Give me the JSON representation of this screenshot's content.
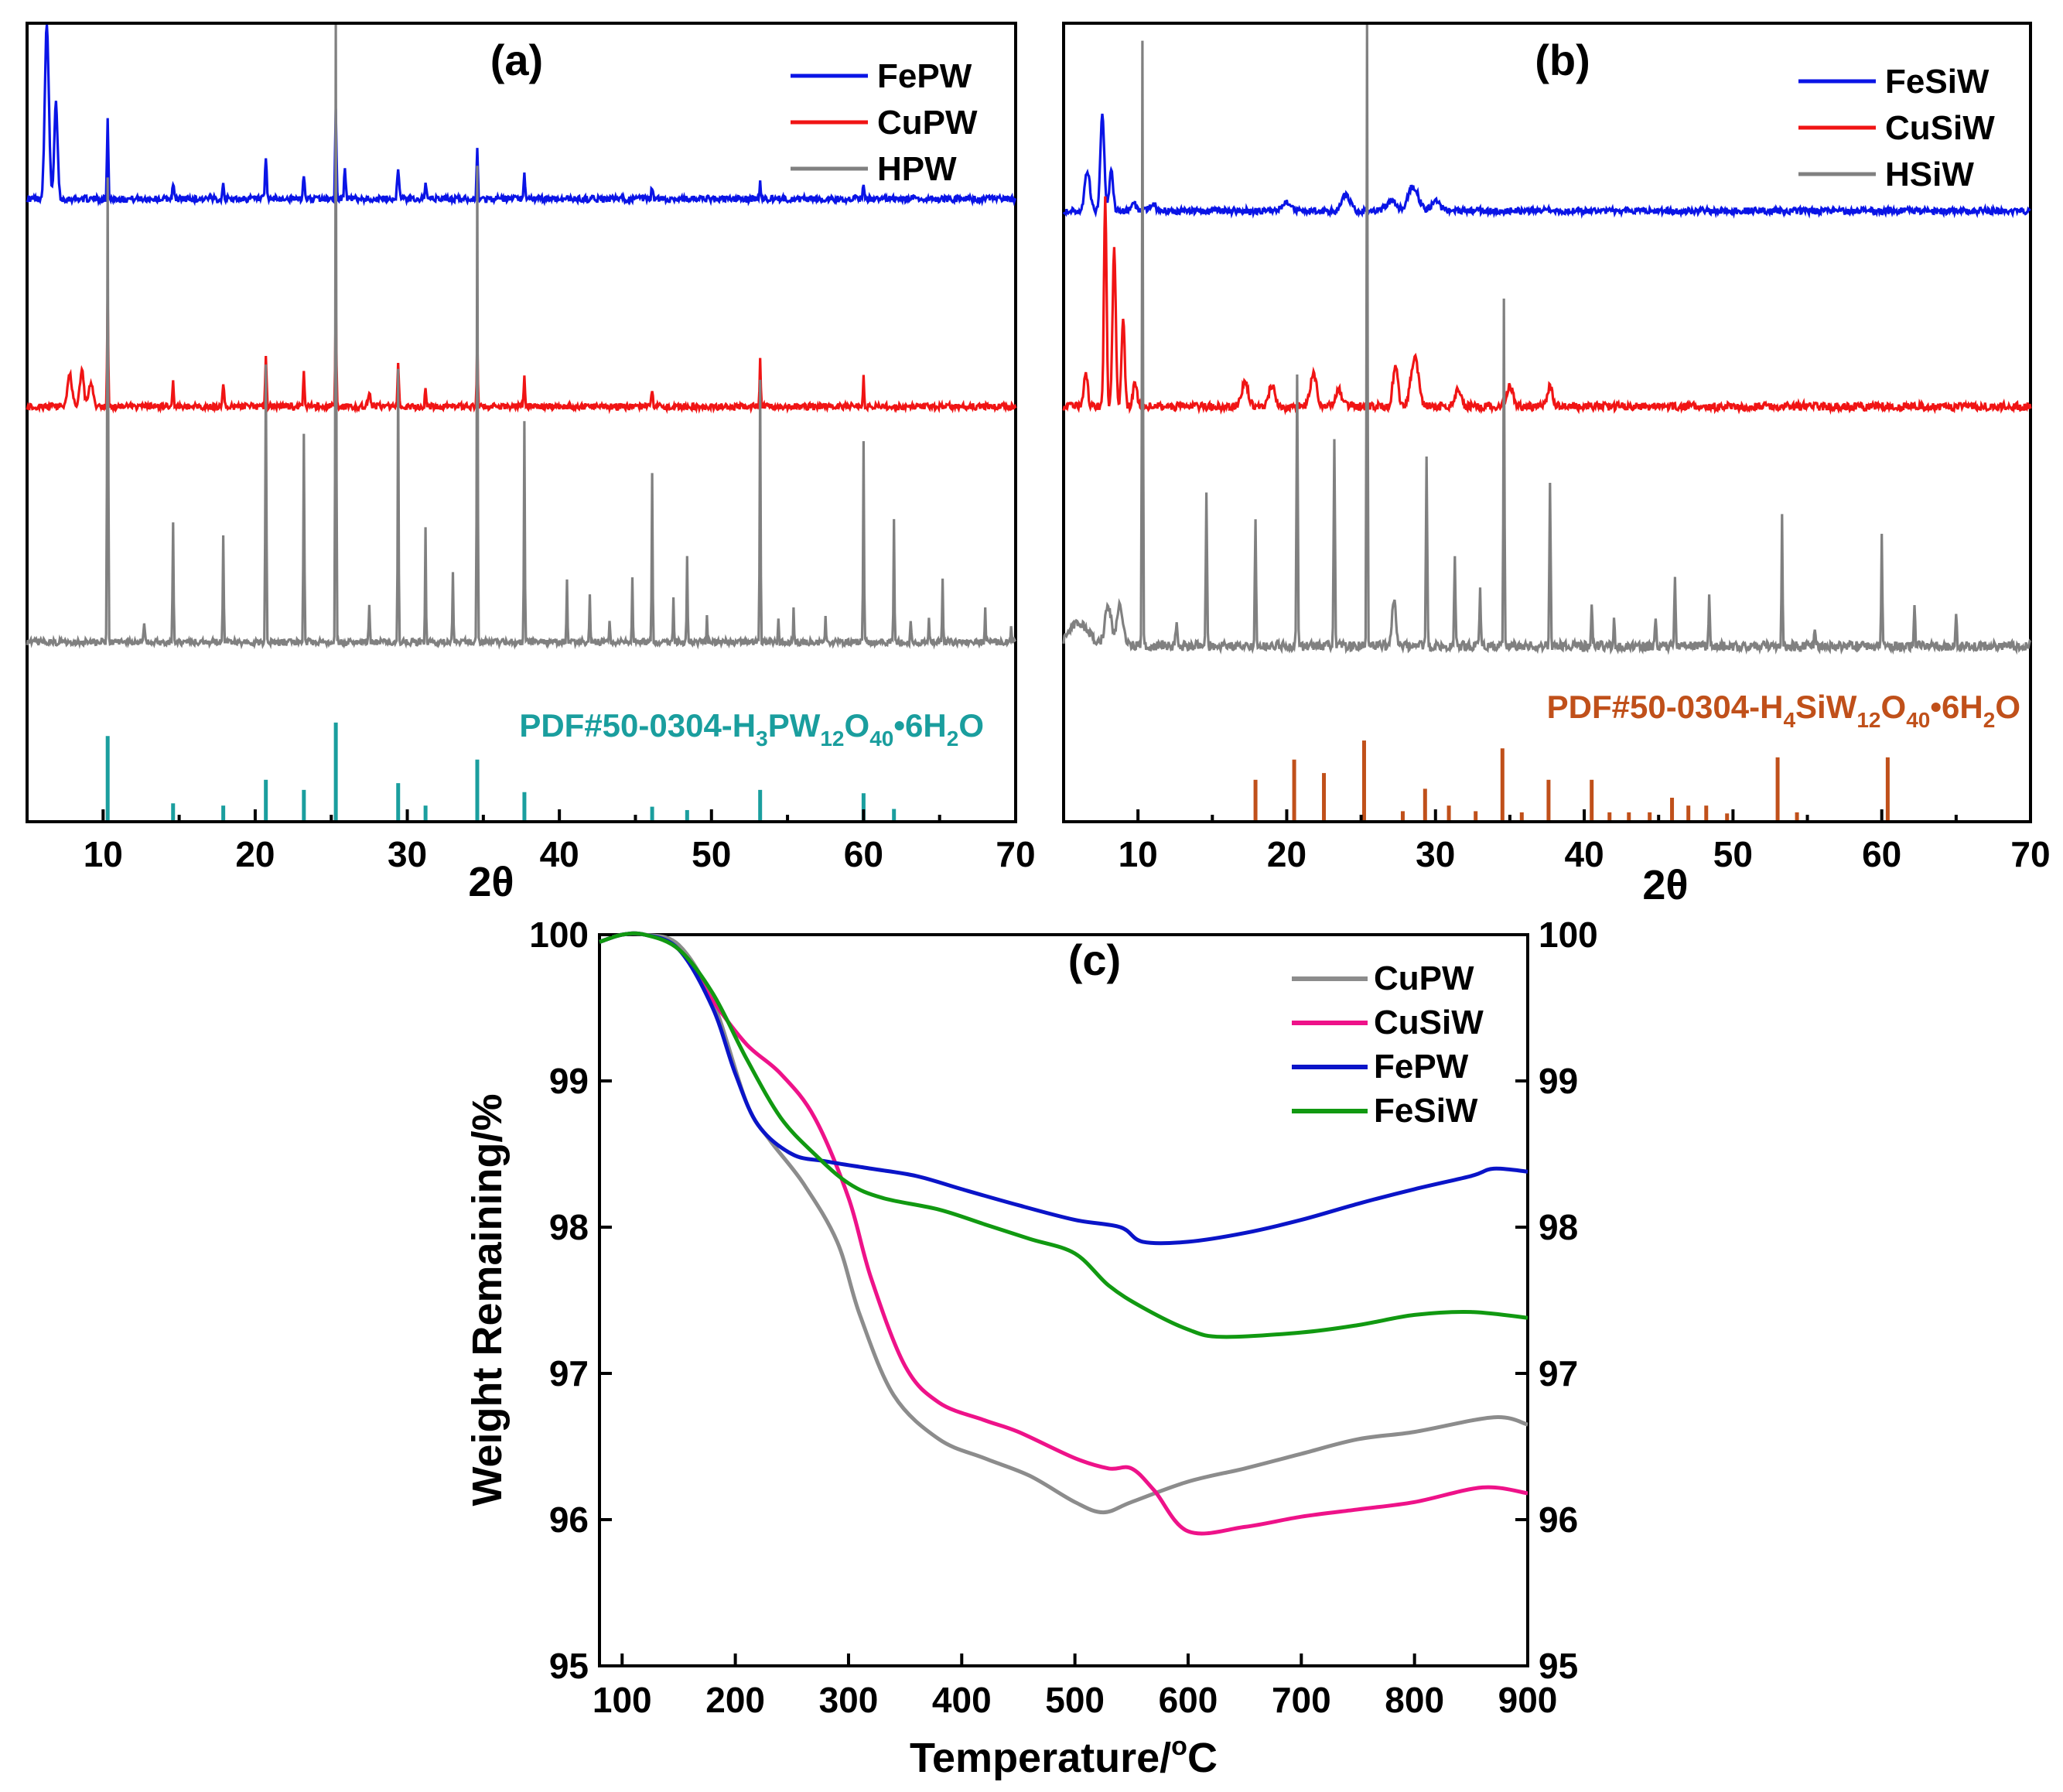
{
  "chart_data": [
    {
      "panel": "(a)",
      "type": "line",
      "xlabel": "2θ",
      "xlim": [
        5,
        70
      ],
      "xticks": [
        10,
        20,
        30,
        40,
        50,
        60,
        70
      ],
      "series": [
        {
          "name": "FePW",
          "color": "#0a14e6",
          "baseline": 0.78,
          "noise": 0.004,
          "peaks": [
            [
              6.3,
              0.22,
              0.3
            ],
            [
              6.9,
              0.12,
              0.25
            ],
            [
              10.3,
              0.1,
              0.1
            ],
            [
              14.6,
              0.02,
              0.12
            ],
            [
              17.9,
              0.02,
              0.12
            ],
            [
              20.7,
              0.05,
              0.12
            ],
            [
              23.2,
              0.03,
              0.12
            ],
            [
              25.3,
              0.11,
              0.1
            ],
            [
              25.9,
              0.04,
              0.12
            ],
            [
              29.4,
              0.04,
              0.15
            ],
            [
              31.2,
              0.02,
              0.12
            ],
            [
              34.6,
              0.06,
              0.1
            ],
            [
              37.7,
              0.03,
              0.1
            ],
            [
              46.1,
              0.015,
              0.12
            ],
            [
              53.2,
              0.02,
              0.1
            ],
            [
              60.0,
              0.02,
              0.1
            ]
          ]
        },
        {
          "name": "CuPW",
          "color": "#f01414",
          "baseline": 0.52,
          "noise": 0.004,
          "peaks": [
            [
              7.8,
              0.04,
              0.35
            ],
            [
              8.6,
              0.045,
              0.3
            ],
            [
              9.2,
              0.03,
              0.3
            ],
            [
              10.3,
              0.14,
              0.08
            ],
            [
              14.6,
              0.03,
              0.1
            ],
            [
              17.9,
              0.03,
              0.12
            ],
            [
              20.7,
              0.06,
              0.1
            ],
            [
              23.2,
              0.045,
              0.1
            ],
            [
              25.3,
              0.14,
              0.08
            ],
            [
              27.5,
              0.015,
              0.2
            ],
            [
              29.4,
              0.055,
              0.1
            ],
            [
              31.2,
              0.025,
              0.1
            ],
            [
              34.6,
              0.09,
              0.08
            ],
            [
              37.7,
              0.035,
              0.1
            ],
            [
              46.1,
              0.02,
              0.12
            ],
            [
              53.2,
              0.06,
              0.08
            ],
            [
              60.0,
              0.04,
              0.08
            ]
          ]
        },
        {
          "name": "HPW",
          "color": "#808080",
          "baseline": 0.225,
          "noise": 0.004,
          "peaks": [
            [
              10.3,
              0.58,
              0.08
            ],
            [
              12.7,
              0.02,
              0.1
            ],
            [
              14.6,
              0.15,
              0.08
            ],
            [
              17.9,
              0.13,
              0.08
            ],
            [
              20.7,
              0.35,
              0.08
            ],
            [
              23.2,
              0.26,
              0.08
            ],
            [
              25.3,
              0.81,
              0.07
            ],
            [
              27.5,
              0.05,
              0.08
            ],
            [
              29.4,
              0.34,
              0.07
            ],
            [
              31.2,
              0.14,
              0.07
            ],
            [
              33.0,
              0.09,
              0.07
            ],
            [
              34.6,
              0.6,
              0.07
            ],
            [
              37.7,
              0.28,
              0.07
            ],
            [
              40.5,
              0.08,
              0.07
            ],
            [
              42.0,
              0.06,
              0.07
            ],
            [
              43.3,
              0.03,
              0.07
            ],
            [
              44.8,
              0.08,
              0.07
            ],
            [
              46.1,
              0.21,
              0.07
            ],
            [
              47.5,
              0.06,
              0.07
            ],
            [
              48.4,
              0.11,
              0.07
            ],
            [
              49.7,
              0.03,
              0.07
            ],
            [
              53.2,
              0.33,
              0.07
            ],
            [
              54.4,
              0.03,
              0.07
            ],
            [
              55.4,
              0.04,
              0.07
            ],
            [
              57.5,
              0.03,
              0.07
            ],
            [
              60.0,
              0.25,
              0.07
            ],
            [
              62.0,
              0.15,
              0.07
            ],
            [
              63.1,
              0.03,
              0.07
            ],
            [
              64.3,
              0.03,
              0.07
            ],
            [
              65.2,
              0.08,
              0.07
            ],
            [
              68.0,
              0.04,
              0.07
            ],
            [
              69.7,
              0.02,
              0.07
            ]
          ]
        }
      ],
      "reference": {
        "label": "PDF#50-0304-H",
        "sub1": "3",
        "mid1": "PW",
        "sub2": "12",
        "mid2": "O",
        "sub3": "40",
        "tail": "•6H",
        "sub4": "2",
        "end": "O",
        "color": "#1a9e9e",
        "sticks": [
          [
            10.3,
            0.75
          ],
          [
            14.6,
            0.15
          ],
          [
            17.9,
            0.13
          ],
          [
            20.7,
            0.36
          ],
          [
            23.2,
            0.27
          ],
          [
            25.3,
            0.87
          ],
          [
            29.4,
            0.33
          ],
          [
            31.2,
            0.13
          ],
          [
            34.6,
            0.54
          ],
          [
            37.7,
            0.25
          ],
          [
            46.1,
            0.12
          ],
          [
            48.4,
            0.09
          ],
          [
            53.2,
            0.27
          ],
          [
            60.0,
            0.24
          ],
          [
            62.0,
            0.1
          ]
        ]
      }
    },
    {
      "panel": "(b)",
      "type": "line",
      "xlabel": "2θ",
      "xlim": [
        5,
        70
      ],
      "xticks": [
        10,
        20,
        30,
        40,
        50,
        60,
        70
      ],
      "series": [
        {
          "name": "FeSiW",
          "color": "#0a14e6",
          "baseline": 0.765,
          "noise": 0.004,
          "peaks": [
            [
              6.6,
              0.05,
              0.4
            ],
            [
              7.6,
              0.12,
              0.3
            ],
            [
              8.2,
              0.05,
              0.3
            ],
            [
              9.7,
              0.012,
              0.3
            ],
            [
              11.0,
              0.01,
              0.4
            ],
            [
              20.0,
              0.012,
              0.6
            ],
            [
              24.0,
              0.02,
              0.6
            ],
            [
              27.0,
              0.012,
              0.8
            ],
            [
              28.5,
              0.03,
              0.8
            ],
            [
              30.0,
              0.012,
              0.6
            ]
          ]
        },
        {
          "name": "CuSiW",
          "color": "#f01414",
          "baseline": 0.52,
          "noise": 0.005,
          "peaks": [
            [
              6.5,
              0.04,
              0.3
            ],
            [
              7.8,
              0.26,
              0.2
            ],
            [
              8.4,
              0.2,
              0.25
            ],
            [
              9.0,
              0.11,
              0.25
            ],
            [
              9.8,
              0.03,
              0.3
            ],
            [
              17.2,
              0.03,
              0.5
            ],
            [
              19.0,
              0.025,
              0.5
            ],
            [
              21.8,
              0.04,
              0.5
            ],
            [
              23.5,
              0.02,
              0.5
            ],
            [
              27.3,
              0.05,
              0.4
            ],
            [
              28.6,
              0.06,
              0.6
            ],
            [
              31.5,
              0.02,
              0.5
            ],
            [
              35.0,
              0.025,
              0.5
            ],
            [
              37.7,
              0.025,
              0.4
            ]
          ]
        },
        {
          "name": "HSiW",
          "color": "#808080",
          "baseline": 0.22,
          "noise": 0.006,
          "peaks": [
            [
              6.0,
              0.03,
              1.5
            ],
            [
              8.0,
              0.05,
              0.5
            ],
            [
              8.8,
              0.05,
              0.5
            ],
            [
              10.3,
              0.76,
              0.08
            ],
            [
              12.6,
              0.03,
              0.15
            ],
            [
              14.6,
              0.19,
              0.1
            ],
            [
              17.9,
              0.16,
              0.1
            ],
            [
              20.7,
              0.34,
              0.1
            ],
            [
              23.2,
              0.26,
              0.1
            ],
            [
              25.4,
              0.79,
              0.08
            ],
            [
              27.2,
              0.06,
              0.3
            ],
            [
              29.4,
              0.24,
              0.1
            ],
            [
              31.3,
              0.11,
              0.1
            ],
            [
              33.0,
              0.07,
              0.1
            ],
            [
              34.6,
              0.44,
              0.08
            ],
            [
              37.7,
              0.2,
              0.1
            ],
            [
              40.5,
              0.05,
              0.1
            ],
            [
              42.0,
              0.03,
              0.1
            ],
            [
              44.8,
              0.04,
              0.1
            ],
            [
              46.1,
              0.09,
              0.1
            ],
            [
              48.4,
              0.06,
              0.1
            ],
            [
              53.3,
              0.16,
              0.08
            ],
            [
              55.5,
              0.02,
              0.1
            ],
            [
              60.0,
              0.14,
              0.08
            ],
            [
              62.2,
              0.05,
              0.1
            ],
            [
              65.0,
              0.04,
              0.1
            ]
          ]
        }
      ],
      "reference": {
        "label": "PDF#50-0304-H",
        "sub1": "4",
        "mid1": "SiW",
        "sub2": "12",
        "mid2": "O",
        "sub3": "40",
        "tail": "•6H",
        "sub4": "2",
        "end": "O",
        "color": "#c0501a",
        "sticks": [
          [
            17.9,
            0.36
          ],
          [
            20.5,
            0.54
          ],
          [
            22.5,
            0.42
          ],
          [
            25.2,
            0.71
          ],
          [
            27.8,
            0.08
          ],
          [
            29.3,
            0.28
          ],
          [
            30.9,
            0.13
          ],
          [
            32.7,
            0.08
          ],
          [
            34.5,
            0.64
          ],
          [
            35.8,
            0.07
          ],
          [
            37.6,
            0.36
          ],
          [
            40.5,
            0.36
          ],
          [
            41.7,
            0.07
          ],
          [
            43.0,
            0.07
          ],
          [
            44.4,
            0.07
          ],
          [
            45.9,
            0.2
          ],
          [
            47.0,
            0.13
          ],
          [
            48.2,
            0.13
          ],
          [
            49.6,
            0.06
          ],
          [
            53.0,
            0.56
          ],
          [
            54.3,
            0.07
          ],
          [
            60.4,
            0.56
          ]
        ]
      }
    },
    {
      "panel": "(c)",
      "type": "line",
      "xlabel": "Temperature/",
      "xlabel_sup": "o",
      "xlabel_unit": "C",
      "ylabel": "Weight Remaining/%",
      "xlim": [
        80,
        900
      ],
      "ylim": [
        95,
        100
      ],
      "xticks": [
        100,
        200,
        300,
        400,
        500,
        600,
        700,
        800,
        900
      ],
      "yticks": [
        95,
        96,
        97,
        98,
        99,
        100
      ],
      "series": [
        {
          "name": "CuPW",
          "color": "#8c8c8c",
          "x": [
            80,
            100,
            120,
            150,
            180,
            210,
            230,
            260,
            290,
            310,
            340,
            380,
            420,
            460,
            500,
            525,
            550,
            600,
            650,
            700,
            750,
            800,
            870,
            900
          ],
          "y": [
            99.95,
            100.0,
            100.0,
            99.93,
            99.55,
            98.85,
            98.6,
            98.3,
            97.9,
            97.4,
            96.85,
            96.55,
            96.42,
            96.3,
            96.12,
            96.05,
            96.12,
            96.26,
            96.35,
            96.45,
            96.55,
            96.6,
            96.7,
            96.65
          ]
        },
        {
          "name": "CuSiW",
          "color": "#ee1289",
          "x": [
            80,
            100,
            120,
            150,
            180,
            210,
            240,
            270,
            300,
            320,
            350,
            380,
            420,
            450,
            500,
            530,
            550,
            570,
            600,
            650,
            700,
            750,
            800,
            860,
            900
          ],
          "y": [
            99.95,
            100.0,
            100.0,
            99.9,
            99.55,
            99.25,
            99.05,
            98.75,
            98.2,
            97.65,
            97.05,
            96.8,
            96.68,
            96.6,
            96.42,
            96.35,
            96.35,
            96.2,
            95.92,
            95.95,
            96.02,
            96.07,
            96.12,
            96.22,
            96.18
          ]
        },
        {
          "name": "FePW",
          "color": "#0a14c8",
          "x": [
            80,
            100,
            120,
            150,
            180,
            200,
            220,
            250,
            280,
            320,
            360,
            400,
            450,
            500,
            540,
            560,
            600,
            650,
            700,
            750,
            800,
            850,
            870,
            900
          ],
          "y": [
            99.95,
            100.0,
            100.0,
            99.9,
            99.5,
            99.05,
            98.7,
            98.5,
            98.45,
            98.4,
            98.35,
            98.26,
            98.15,
            98.05,
            98.0,
            97.9,
            97.9,
            97.96,
            98.05,
            98.16,
            98.26,
            98.35,
            98.4,
            98.38
          ]
        },
        {
          "name": "FeSiW",
          "color": "#119911",
          "x": [
            80,
            100,
            120,
            150,
            180,
            210,
            240,
            270,
            300,
            330,
            380,
            420,
            460,
            500,
            530,
            560,
            600,
            630,
            700,
            750,
            800,
            850,
            900
          ],
          "y": [
            99.95,
            100.0,
            100.0,
            99.9,
            99.6,
            99.15,
            98.75,
            98.5,
            98.3,
            98.2,
            98.12,
            98.02,
            97.92,
            97.82,
            97.6,
            97.45,
            97.3,
            97.25,
            97.28,
            97.33,
            97.4,
            97.42,
            97.38
          ]
        }
      ]
    }
  ]
}
